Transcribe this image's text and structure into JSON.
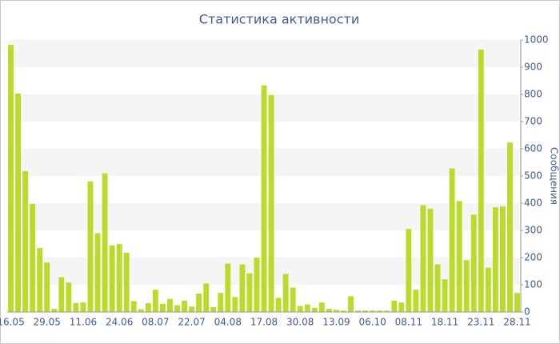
{
  "chart_data": {
    "type": "bar",
    "title": "Статистика активности",
    "y_label": "Сообщения",
    "categories": [
      "16.05",
      null,
      null,
      null,
      null,
      "29.05",
      null,
      null,
      null,
      null,
      "11.06",
      null,
      null,
      null,
      null,
      "24.06",
      null,
      null,
      null,
      null,
      "08.07",
      null,
      null,
      null,
      null,
      "22.07",
      null,
      null,
      null,
      null,
      "04.08",
      null,
      null,
      null,
      null,
      "17.08",
      null,
      null,
      null,
      null,
      "30.08",
      null,
      null,
      null,
      null,
      "13.09",
      null,
      null,
      null,
      null,
      "06.10",
      null,
      null,
      null,
      null,
      "08.11",
      null,
      null,
      null,
      null,
      "18.11",
      null,
      null,
      null,
      null,
      "23.11",
      null,
      null,
      null,
      null,
      "28.11"
    ],
    "values": [
      982,
      803,
      518,
      397,
      235,
      182,
      12,
      128,
      108,
      33,
      35,
      480,
      290,
      510,
      245,
      250,
      218,
      40,
      10,
      32,
      82,
      30,
      48,
      25,
      42,
      20,
      68,
      105,
      18,
      70,
      178,
      55,
      175,
      142,
      200,
      833,
      797,
      52,
      140,
      90,
      22,
      28,
      15,
      35,
      12,
      8,
      5,
      58,
      5,
      5,
      5,
      5,
      5,
      42,
      35,
      305,
      82,
      393,
      380,
      175,
      120,
      528,
      408,
      190,
      358,
      965,
      163,
      385,
      388,
      623,
      70
    ],
    "color": "#bada2c",
    "ylim": [
      0,
      1000
    ],
    "yticks": [
      0,
      100,
      200,
      300,
      400,
      500,
      600,
      700,
      800,
      900,
      1000
    ],
    "grid": true
  }
}
